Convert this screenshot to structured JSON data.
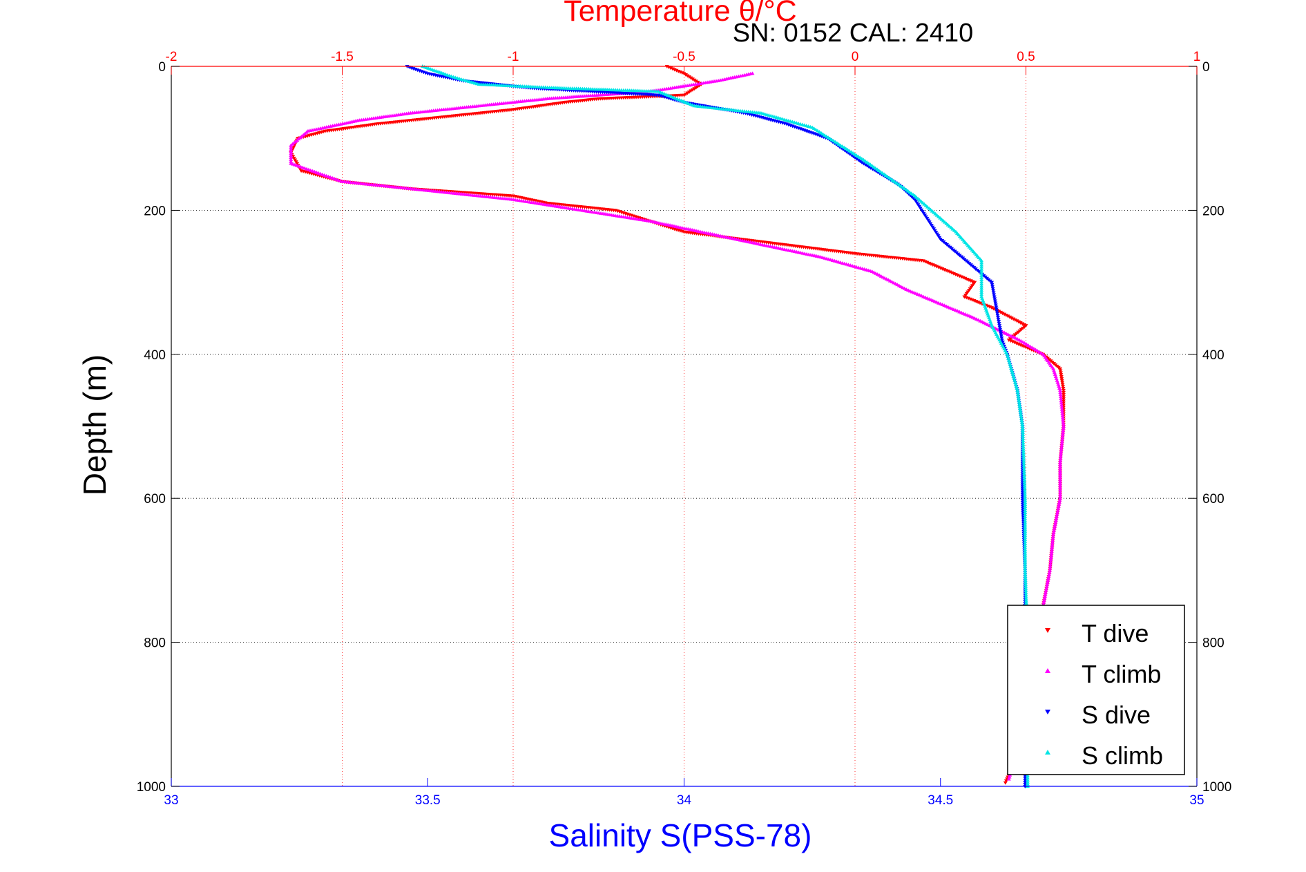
{
  "chart_data": {
    "type": "scatter",
    "title": "Temperature θ/°C",
    "subtitle": "SN: 0152  CAL: 2410",
    "xlabel": "Salinity S(PSS-78)",
    "x2label": "Temperature θ/°C",
    "ylabel": "Depth (m)",
    "xlim": [
      33,
      35
    ],
    "x2lim": [
      -2,
      1
    ],
    "ylim": [
      0,
      1000
    ],
    "y_reversed": true,
    "x_ticks": [
      "33",
      "33.5",
      "34",
      "34.5",
      "35"
    ],
    "x2_ticks": [
      "-2",
      "-1.5",
      "-1",
      "-0.5",
      "0",
      "0.5",
      "1"
    ],
    "y_ticks": [
      "0",
      "200",
      "400",
      "600",
      "800",
      "1000"
    ],
    "grid": true,
    "legend_position": "bottom-right",
    "colors": {
      "t_dive": "#ff0000",
      "t_climb": "#ff00ff",
      "s_dive": "#0000ff",
      "s_climb": "#00e5e5",
      "temp_axis": "#ff0000",
      "sal_axis": "#0000ff"
    },
    "series": [
      {
        "name": "T dive",
        "key": "t_dive",
        "axis": "temperature",
        "marker": "triangle-down",
        "x": [
          -0.55,
          -0.5,
          -0.45,
          -0.5,
          -0.75,
          -0.85,
          -1.0,
          -1.2,
          -1.4,
          -1.55,
          -1.63,
          -1.65,
          -1.62,
          -1.5,
          -1.3,
          -1.0,
          -0.9,
          -0.7,
          -0.5,
          0.0,
          0.2,
          0.3,
          0.35,
          0.32,
          0.4,
          0.5,
          0.45,
          0.55,
          0.6,
          0.61,
          0.61,
          0.6,
          0.6,
          0.58,
          0.57,
          0.55,
          0.48,
          0.44
        ],
        "y": [
          0,
          10,
          25,
          40,
          45,
          50,
          60,
          70,
          80,
          90,
          100,
          120,
          145,
          160,
          170,
          180,
          190,
          200,
          230,
          260,
          270,
          290,
          300,
          320,
          335,
          360,
          380,
          400,
          420,
          450,
          500,
          550,
          600,
          650,
          700,
          750,
          950,
          995
        ]
      },
      {
        "name": "T climb",
        "key": "t_climb",
        "axis": "temperature",
        "marker": "triangle-up",
        "x": [
          -0.3,
          -0.4,
          -0.6,
          -0.9,
          -1.1,
          -1.3,
          -1.45,
          -1.6,
          -1.65,
          -1.65,
          -1.5,
          -1.3,
          -1.0,
          -0.6,
          -0.3,
          -0.1,
          0.05,
          0.15,
          0.35,
          0.48,
          0.55,
          0.58,
          0.6,
          0.61,
          0.6,
          0.6,
          0.58,
          0.57,
          0.55,
          0.5,
          0.45
        ],
        "y": [
          10,
          20,
          35,
          45,
          55,
          65,
          75,
          90,
          110,
          135,
          160,
          170,
          185,
          215,
          245,
          265,
          285,
          310,
          350,
          380,
          400,
          420,
          450,
          500,
          550,
          600,
          650,
          700,
          750,
          900,
          990
        ]
      },
      {
        "name": "S dive",
        "key": "s_dive",
        "axis": "salinity",
        "marker": "triangle-down",
        "x": [
          33.46,
          33.5,
          33.57,
          33.7,
          33.95,
          34.0,
          34.12,
          34.2,
          34.28,
          34.35,
          34.42,
          34.45,
          34.5,
          34.55,
          34.6,
          34.61,
          34.62,
          34.63,
          34.65,
          34.66,
          34.66,
          34.665,
          34.665,
          34.665
        ],
        "y": [
          0,
          10,
          20,
          30,
          40,
          50,
          65,
          80,
          100,
          135,
          165,
          185,
          240,
          270,
          300,
          340,
          380,
          400,
          450,
          500,
          600,
          700,
          800,
          1000
        ]
      },
      {
        "name": "S climb",
        "key": "s_climb",
        "axis": "salinity",
        "marker": "triangle-up",
        "x": [
          33.49,
          33.55,
          33.6,
          33.75,
          33.95,
          34.02,
          34.15,
          34.25,
          34.35,
          34.45,
          34.53,
          34.58,
          34.58,
          34.6,
          34.63,
          34.65,
          34.66,
          34.665,
          34.665,
          34.67,
          34.67
        ],
        "y": [
          0,
          15,
          25,
          30,
          35,
          55,
          65,
          85,
          130,
          180,
          230,
          270,
          320,
          360,
          400,
          450,
          500,
          600,
          700,
          800,
          1000
        ]
      }
    ]
  }
}
